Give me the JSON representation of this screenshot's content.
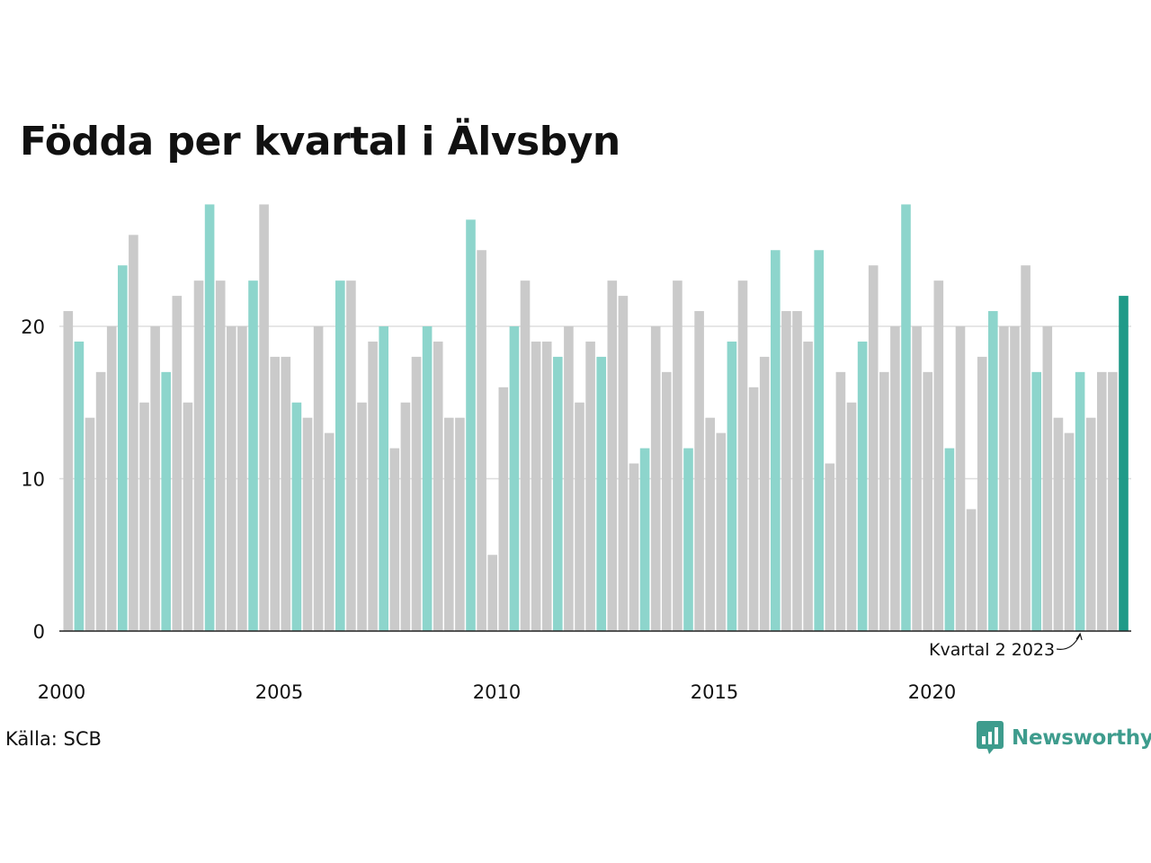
{
  "title": "Födda per kvartal i Älvsbyn",
  "source": "Källa: SCB",
  "logo": {
    "name": "Newsworthy",
    "icon": "newsworthy-logo-icon",
    "color": "#3e9c8d"
  },
  "colors": {
    "q2": "#8dd5cc",
    "other": "#cacaca",
    "latest": "#1f9a88",
    "axis": "#222222",
    "grid": "#dddddd"
  },
  "annotation": {
    "text": "Kvartal 2 2023",
    "target_index": 93
  },
  "chart_data": {
    "type": "bar",
    "title": "Födda per kvartal i Älvsbyn",
    "xlabel": "",
    "ylabel": "",
    "start_year": 2000,
    "ylim": [
      0,
      28
    ],
    "yticks": [
      0,
      10,
      20
    ],
    "xtick_labels": [
      "2000",
      "2005",
      "2010",
      "2015",
      "2020"
    ],
    "grid": true,
    "highlight": "Kvartal 2 of each year",
    "values": [
      21,
      19,
      14,
      17,
      20,
      24,
      26,
      15,
      20,
      17,
      22,
      15,
      23,
      28,
      23,
      20,
      20,
      23,
      28,
      18,
      18,
      15,
      14,
      20,
      13,
      23,
      23,
      15,
      19,
      20,
      12,
      15,
      18,
      20,
      19,
      14,
      14,
      27,
      25,
      5,
      16,
      20,
      23,
      19,
      19,
      18,
      20,
      15,
      19,
      18,
      23,
      22,
      11,
      12,
      20,
      17,
      23,
      12,
      21,
      14,
      13,
      19,
      23,
      16,
      18,
      25,
      21,
      21,
      19,
      25,
      11,
      17,
      15,
      19,
      24,
      17,
      20,
      28,
      20,
      17,
      23,
      12,
      20,
      8,
      18,
      21,
      20,
      20,
      24,
      17,
      20,
      14,
      13,
      17,
      14,
      17,
      17,
      22
    ]
  }
}
